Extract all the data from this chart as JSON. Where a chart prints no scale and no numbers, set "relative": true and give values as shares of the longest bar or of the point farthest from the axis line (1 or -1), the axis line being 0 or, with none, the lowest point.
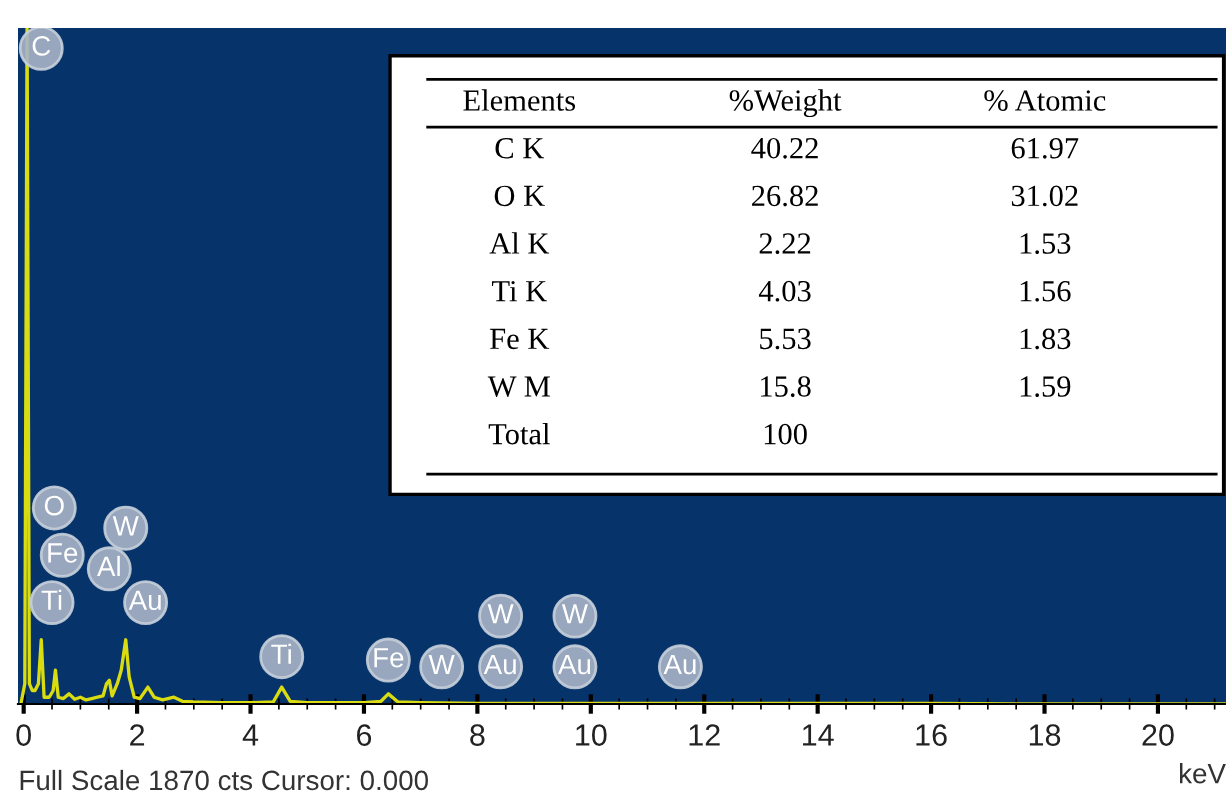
{
  "chart_data": {
    "type": "line",
    "relative": true,
    "xlabel": "keV",
    "color": "#d8dc10",
    "x": [
      -0.05,
      0.02,
      0.06,
      0.1,
      0.15,
      0.2,
      0.26,
      0.31,
      0.36,
      0.45,
      0.52,
      0.56,
      0.61,
      0.7,
      0.8,
      0.9,
      1.0,
      1.1,
      1.2,
      1.3,
      1.4,
      1.46,
      1.51,
      1.56,
      1.65,
      1.72,
      1.8,
      1.86,
      1.95,
      2.05,
      2.19,
      2.3,
      2.45,
      2.65,
      2.8,
      3.0,
      3.5,
      4.0,
      4.4,
      4.55,
      4.7,
      5.0,
      5.5,
      6.0,
      6.3,
      6.43,
      6.6,
      7.0,
      8.0,
      9.0,
      10.0,
      12.0,
      14.0,
      16.0,
      18.0,
      20.0,
      21.2
    ],
    "values": [
      0.0,
      0.03,
      1.0,
      0.03,
      0.02,
      0.02,
      0.03,
      0.095,
      0.01,
      0.01,
      0.02,
      0.05,
      0.01,
      0.008,
      0.015,
      0.007,
      0.01,
      0.006,
      0.008,
      0.01,
      0.012,
      0.03,
      0.035,
      0.012,
      0.03,
      0.05,
      0.095,
      0.04,
      0.01,
      0.008,
      0.025,
      0.01,
      0.006,
      0.01,
      0.004,
      0.003,
      0.002,
      0.002,
      0.003,
      0.025,
      0.004,
      0.002,
      0.002,
      0.002,
      0.004,
      0.015,
      0.003,
      0.002,
      0.001,
      0.001,
      0.001,
      0.001,
      0.001,
      0.001,
      0.0,
      0.0,
      0.0
    ],
    "xlim": [
      -0.1,
      21.2
    ],
    "xticks": [
      0,
      2,
      4,
      6,
      8,
      10,
      12,
      14,
      16,
      18,
      20
    ],
    "annotations": [
      {
        "text": "C",
        "x": 0.31,
        "y": 0.97
      },
      {
        "text": "O",
        "x": 0.54,
        "y": 0.29
      },
      {
        "text": "Fe",
        "x": 0.68,
        "y": 0.22
      },
      {
        "text": "Ti",
        "x": 0.5,
        "y": 0.15
      },
      {
        "text": "W",
        "x": 1.8,
        "y": 0.26
      },
      {
        "text": "Al",
        "x": 1.51,
        "y": 0.2
      },
      {
        "text": "Au",
        "x": 2.15,
        "y": 0.15
      },
      {
        "text": "Ti",
        "x": 4.55,
        "y": 0.07
      },
      {
        "text": "Fe",
        "x": 6.43,
        "y": 0.065
      },
      {
        "text": "W",
        "x": 7.37,
        "y": 0.055
      },
      {
        "text": "W",
        "x": 8.41,
        "y": 0.13
      },
      {
        "text": "Au",
        "x": 8.41,
        "y": 0.055
      },
      {
        "text": "W",
        "x": 9.72,
        "y": 0.13
      },
      {
        "text": "Au",
        "x": 9.72,
        "y": 0.055
      },
      {
        "text": "Au",
        "x": 11.58,
        "y": 0.055
      },
      "Full Scale 1870 cts Cursor: 0.000",
      "Elements",
      "%Weight",
      "% Atomic",
      "C K",
      "40.22",
      "61.97",
      "O K",
      "26.82",
      "31.02",
      "Al K",
      "2.22",
      "1.53",
      "Ti K",
      "4.03",
      "1.56",
      "Fe K",
      "5.53",
      "1.83",
      "W M",
      "15.8",
      "1.59",
      "Total",
      "100"
    ]
  }
}
